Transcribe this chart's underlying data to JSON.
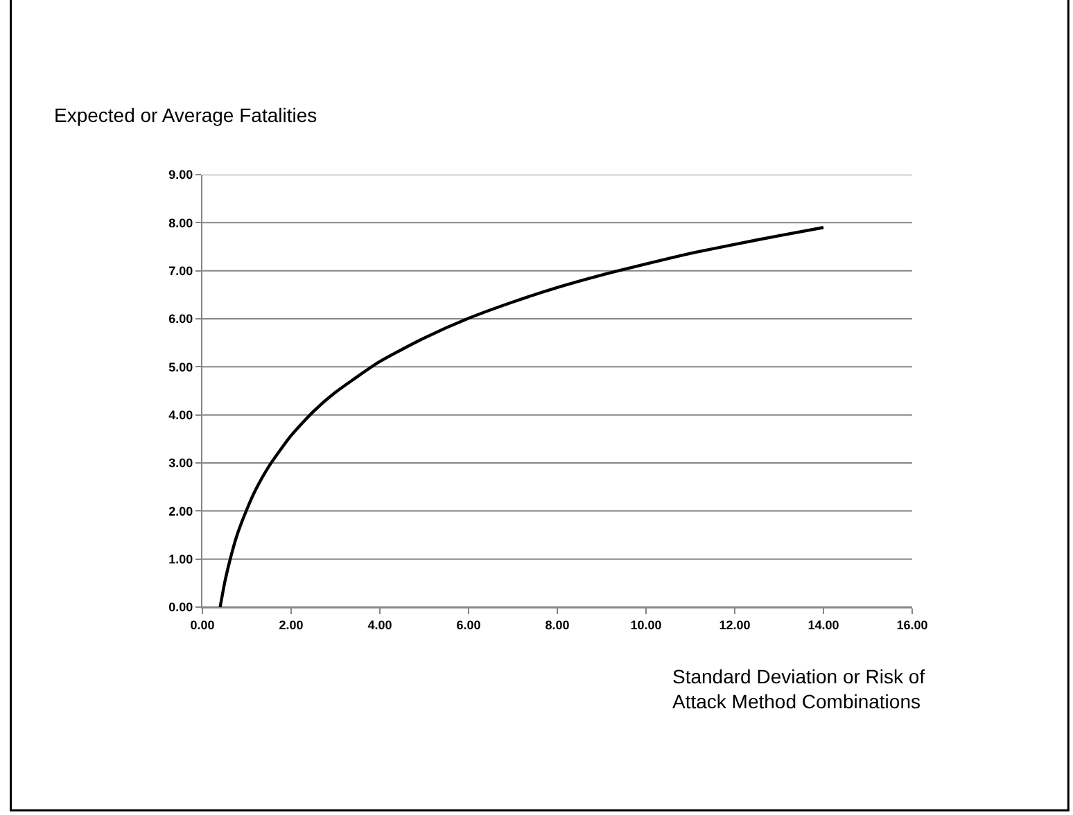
{
  "chart_data": {
    "type": "line",
    "xlabel": "Standard Deviation or Risk of\nAttack Method Combinations",
    "ylabel": "Expected or Average Fatalities",
    "x": [
      0.4,
      0.5,
      0.6,
      0.7,
      0.8,
      1.0,
      1.2,
      1.5,
      2.0,
      2.5,
      3.0,
      4.0,
      5.0,
      6.0,
      7.0,
      8.0,
      9.0,
      10.0,
      11.0,
      12.0,
      13.0,
      14.0
    ],
    "series": [
      {
        "color": "#000000",
        "values": [
          0.0,
          0.5,
          0.9,
          1.25,
          1.55,
          2.03,
          2.44,
          2.93,
          3.57,
          4.07,
          4.47,
          5.11,
          5.6,
          6.01,
          6.35,
          6.65,
          6.91,
          7.14,
          7.36,
          7.55,
          7.73,
          7.9
        ]
      }
    ],
    "xlim": [
      0,
      16
    ],
    "ylim": [
      0,
      9
    ],
    "xticks": [
      {
        "value": 0,
        "label": "0.00"
      },
      {
        "value": 2,
        "label": "2.00"
      },
      {
        "value": 4,
        "label": "4.00"
      },
      {
        "value": 6,
        "label": "6.00"
      },
      {
        "value": 8,
        "label": "8.00"
      },
      {
        "value": 10,
        "label": "10.00"
      },
      {
        "value": 12,
        "label": "12.00"
      },
      {
        "value": 14,
        "label": "14.00"
      },
      {
        "value": 16,
        "label": "16.00"
      }
    ],
    "yticks": [
      {
        "value": 0,
        "label": "0.00"
      },
      {
        "value": 1,
        "label": "1.00"
      },
      {
        "value": 2,
        "label": "2.00"
      },
      {
        "value": 3,
        "label": "3.00"
      },
      {
        "value": 4,
        "label": "4.00"
      },
      {
        "value": 5,
        "label": "5.00"
      },
      {
        "value": 6,
        "label": "6.00"
      },
      {
        "value": 7,
        "label": "7.00"
      },
      {
        "value": 8,
        "label": "8.00"
      },
      {
        "value": 9,
        "label": "9.00"
      }
    ],
    "grid": "y",
    "legend": false,
    "marker": "none",
    "line_style": "solid"
  }
}
